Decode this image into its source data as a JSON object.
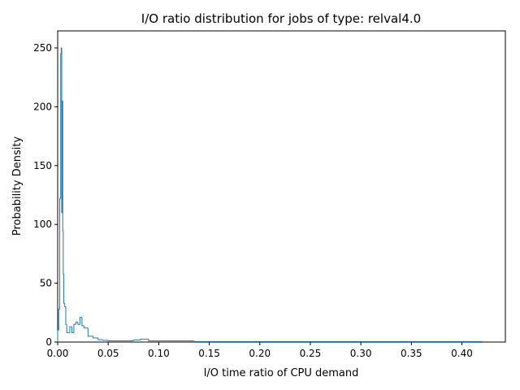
{
  "chart_data": {
    "type": "histogram",
    "title": "I/O ratio distribution for jobs of type: relval4.0",
    "x_label": "I/O time ratio of CPU demand",
    "y_label": "Probability Density",
    "color": "#1f77b4",
    "histtype": "step",
    "grid": false,
    "bins": [
      0,
      0.001,
      0.002,
      0.003,
      0.0035,
      0.004,
      0.0045,
      0.005,
      0.0055,
      0.006,
      0.007,
      0.008,
      0.009,
      0.012,
      0.014,
      0.016,
      0.018,
      0.02,
      0.022,
      0.024,
      0.026,
      0.028,
      0.03,
      0.035,
      0.04,
      0.045,
      0.05,
      0.075,
      0.082,
      0.09,
      0.135,
      0.42
    ],
    "values": [
      10,
      28,
      122,
      245,
      250,
      110,
      205,
      95,
      58,
      33,
      30,
      15,
      8,
      13,
      8,
      15,
      17,
      15,
      21,
      14,
      12,
      12,
      5,
      3.5,
      2,
      1.5,
      1,
      1.8,
      2.5,
      1,
      0.4
    ],
    "xlim": [
      0,
      0.443
    ],
    "ylim": [
      0,
      264.5
    ],
    "xticks": [
      {
        "value": 0,
        "label": "0.00"
      },
      0.05,
      {
        "value": 0.1,
        "label": "0.10"
      },
      0.15,
      {
        "value": 0.2,
        "label": "0.20"
      },
      0.25,
      {
        "value": 0.3,
        "label": "0.30"
      },
      0.35,
      {
        "value": 0.4,
        "label": "0.40"
      }
    ],
    "yticks": [
      0,
      50,
      100,
      150,
      200,
      250
    ]
  }
}
